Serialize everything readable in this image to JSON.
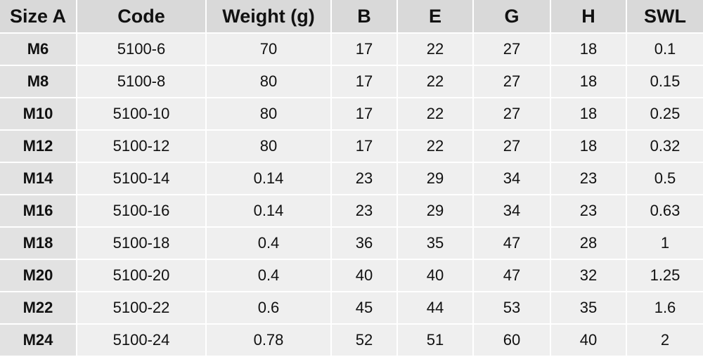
{
  "table": {
    "headers": [
      "Size A",
      "Code",
      "Weight (g)",
      "B",
      "E",
      "G",
      "H",
      "SWL"
    ],
    "rows": [
      [
        "M6",
        "5100-6",
        "70",
        "17",
        "22",
        "27",
        "18",
        "0.1"
      ],
      [
        "M8",
        "5100-8",
        "80",
        "17",
        "22",
        "27",
        "18",
        "0.15"
      ],
      [
        "M10",
        "5100-10",
        "80",
        "17",
        "22",
        "27",
        "18",
        "0.25"
      ],
      [
        "M12",
        "5100-12",
        "80",
        "17",
        "22",
        "27",
        "18",
        "0.32"
      ],
      [
        "M14",
        "5100-14",
        "0.14",
        "23",
        "29",
        "34",
        "23",
        "0.5"
      ],
      [
        "M16",
        "5100-16",
        "0.14",
        "23",
        "29",
        "34",
        "23",
        "0.63"
      ],
      [
        "M18",
        "5100-18",
        "0.4",
        "36",
        "35",
        "47",
        "28",
        "1"
      ],
      [
        "M20",
        "5100-20",
        "0.4",
        "40",
        "40",
        "47",
        "32",
        "1.25"
      ],
      [
        "M22",
        "5100-22",
        "0.6",
        "45",
        "44",
        "53",
        "35",
        "1.6"
      ],
      [
        "M24",
        "5100-24",
        "0.78",
        "52",
        "51",
        "60",
        "40",
        "2"
      ]
    ]
  }
}
